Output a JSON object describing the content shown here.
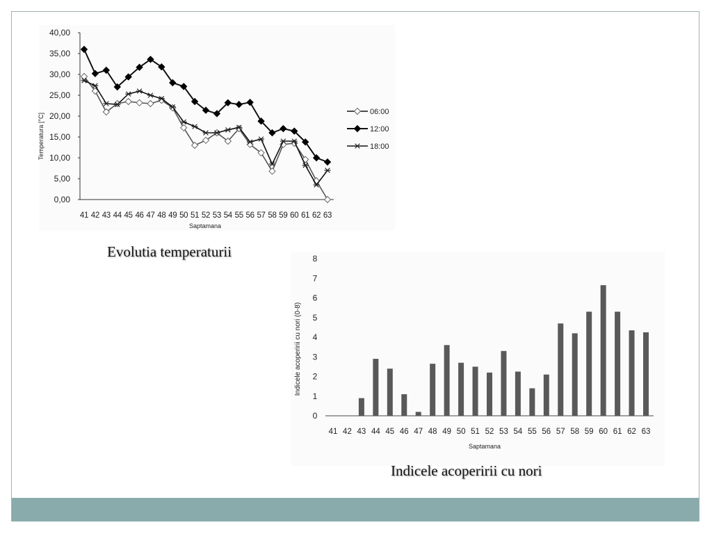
{
  "captions": {
    "temperature": "Evolutia temperaturii",
    "cloud": "Indicele acoperirii cu nori"
  },
  "colors": {
    "frame": "#9db3b3",
    "footer_band": "#8aabab",
    "bar": "#595959",
    "line": "#111111"
  },
  "chart_data": [
    {
      "type": "line",
      "title": "",
      "xlabel": "Saptamana",
      "ylabel": "Temperatura  [°C]",
      "ylim": [
        0,
        40
      ],
      "yticks": [
        "0,00",
        "5,00",
        "10,00",
        "15,00",
        "20,00",
        "25,00",
        "30,00",
        "35,00",
        "40,00"
      ],
      "categories": [
        "41",
        "42",
        "43",
        "44",
        "45",
        "46",
        "47",
        "48",
        "49",
        "50",
        "51",
        "52",
        "53",
        "54",
        "55",
        "56",
        "57",
        "58",
        "59",
        "60",
        "61",
        "62",
        "63"
      ],
      "legend_position": "right",
      "grid": false,
      "series": [
        {
          "name": "06:00",
          "marker": "diamond-open",
          "values": [
            29.5,
            26.0,
            21.0,
            23.0,
            23.5,
            23.2,
            23.0,
            23.8,
            22.0,
            17.2,
            13.0,
            14.2,
            16.0,
            14.0,
            17.0,
            13.2,
            11.2,
            6.8,
            13.2,
            13.5,
            9.6,
            4.5,
            0.0
          ]
        },
        {
          "name": "12:00",
          "marker": "diamond-filled",
          "values": [
            36.0,
            30.2,
            31.0,
            27.0,
            29.4,
            31.7,
            33.6,
            31.8,
            28.0,
            27.1,
            23.5,
            21.4,
            20.6,
            23.2,
            22.8,
            23.3,
            18.8,
            16.0,
            17.0,
            16.4,
            13.8,
            10.0,
            9.0
          ]
        },
        {
          "name": "18:00",
          "marker": "star",
          "values": [
            28.5,
            27.3,
            23.0,
            22.8,
            25.3,
            26.0,
            25.0,
            24.2,
            22.2,
            18.6,
            17.5,
            16.0,
            16.0,
            16.7,
            17.3,
            13.8,
            14.5,
            8.5,
            14.0,
            14.0,
            8.2,
            3.5,
            7.0
          ]
        }
      ]
    },
    {
      "type": "bar",
      "title": "",
      "xlabel": "Saptamana",
      "ylabel": "Indicele acoperirii cu nori  (0-8)",
      "ylim": [
        0,
        8
      ],
      "yticks": [
        "0",
        "1",
        "2",
        "3",
        "4",
        "5",
        "6",
        "7",
        "8"
      ],
      "grid": false,
      "categories": [
        "41",
        "42",
        "43",
        "44",
        "45",
        "46",
        "47",
        "48",
        "49",
        "50",
        "51",
        "52",
        "53",
        "54",
        "55",
        "56",
        "57",
        "58",
        "59",
        "60",
        "61",
        "62",
        "63"
      ],
      "values": [
        0,
        0,
        0.9,
        2.9,
        2.4,
        1.1,
        0.2,
        2.65,
        3.6,
        2.7,
        2.5,
        2.2,
        3.3,
        2.25,
        1.4,
        2.1,
        4.7,
        4.2,
        5.3,
        6.65,
        5.3,
        4.35,
        4.25
      ]
    }
  ]
}
